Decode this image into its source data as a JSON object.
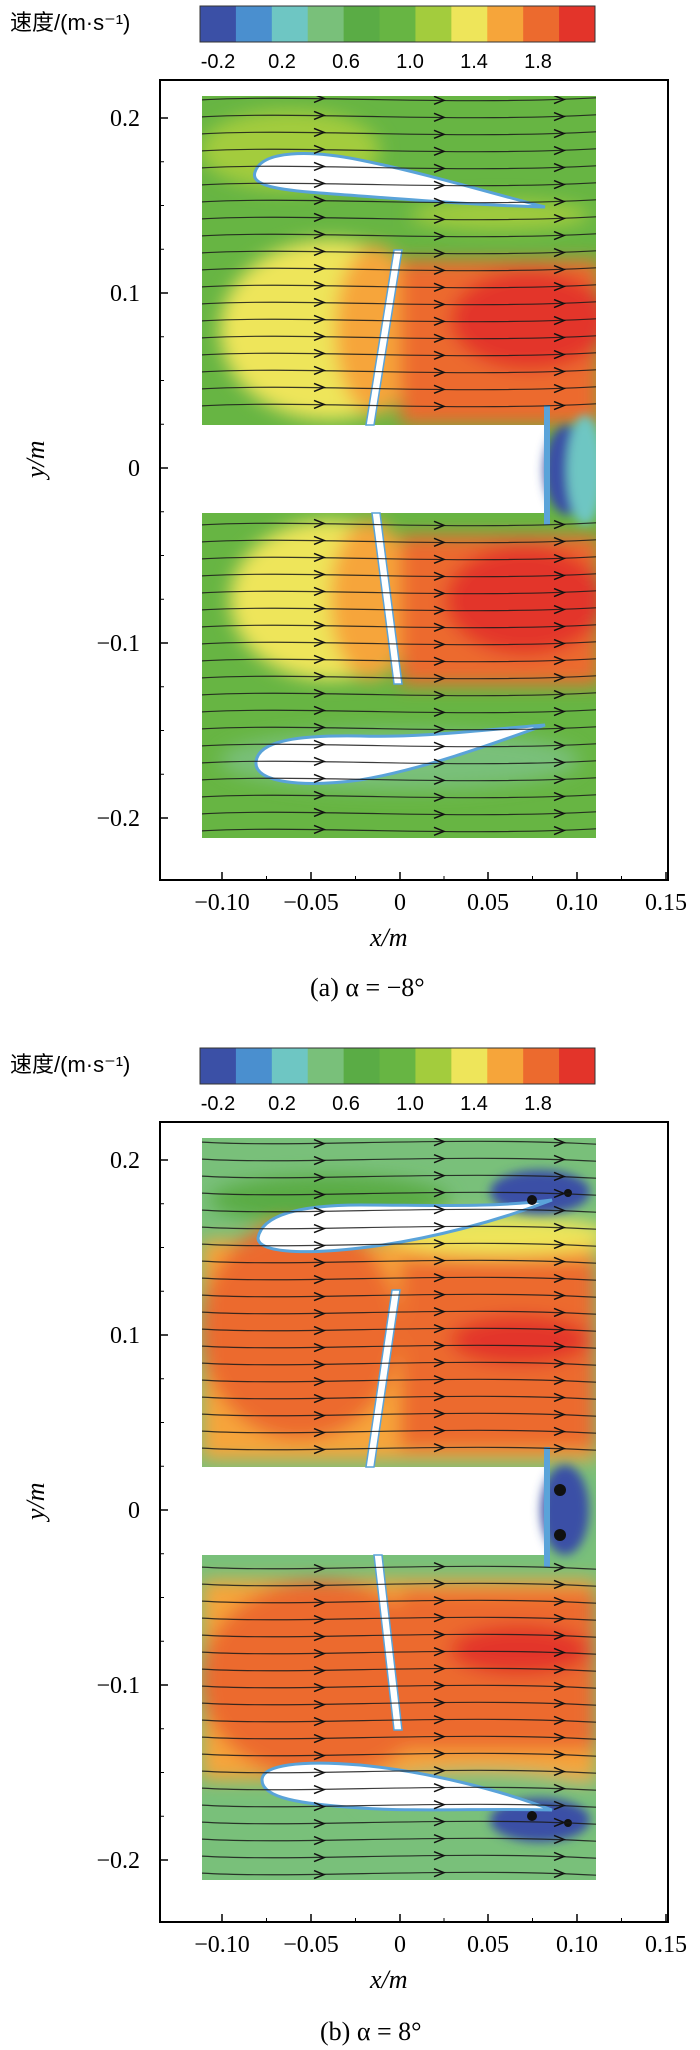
{
  "chart_data": [
    {
      "type": "contour",
      "subplot": "a",
      "caption": "(a)  α = −8°",
      "xlabel": "x/m",
      "ylabel": "y/m",
      "xlim": [
        -0.135,
        0.15
      ],
      "ylim": [
        -0.235,
        0.225
      ],
      "x_ticks": [
        "−0.10",
        "−0.05",
        "0",
        "0.05",
        "0.10",
        "0.15"
      ],
      "y_ticks": [
        "0.2",
        "0.1",
        "0",
        "−0.1",
        "−0.2"
      ],
      "colorbar": {
        "title": "速度/(m·s⁻¹)",
        "tick_labels": [
          "-0.2",
          "0.2",
          "0.6",
          "1.0",
          "1.4",
          "1.8"
        ]
      },
      "flow_angle_deg": -8,
      "vortex_regions": [
        {
          "x": 0.092,
          "y": 0.0,
          "label": "wake vortex"
        }
      ],
      "high_speed_regions": [
        {
          "x": 0.07,
          "y": 0.08,
          "level": 1.9
        },
        {
          "x": 0.07,
          "y": -0.07,
          "level": 1.9
        }
      ]
    },
    {
      "type": "contour",
      "subplot": "b",
      "caption": "(b)  α = 8°",
      "xlabel": "x/m",
      "ylabel": "y/m",
      "xlim": [
        -0.135,
        0.15
      ],
      "ylim": [
        -0.235,
        0.225
      ],
      "x_ticks": [
        "−0.10",
        "−0.05",
        "0",
        "0.05",
        "0.10",
        "0.15"
      ],
      "y_ticks": [
        "0.2",
        "0.1",
        "0",
        "−0.1",
        "−0.2"
      ],
      "colorbar": {
        "title": "速度/(m·s⁻¹)",
        "tick_labels": [
          "-0.2",
          "0.2",
          "0.6",
          "1.0",
          "1.4",
          "1.8"
        ]
      },
      "flow_angle_deg": 8,
      "vortex_regions": [
        {
          "x": 0.09,
          "y": 0.015
        },
        {
          "x": 0.09,
          "y": -0.015
        },
        {
          "x": 0.075,
          "y": 0.155
        },
        {
          "x": 0.075,
          "y": -0.16
        }
      ],
      "high_speed_regions": [
        {
          "x": -0.06,
          "y": 0.07,
          "level": 1.9
        },
        {
          "x": 0.07,
          "y": 0.08,
          "level": 1.9
        },
        {
          "x": -0.05,
          "y": -0.08,
          "level": 1.9
        },
        {
          "x": 0.07,
          "y": -0.07,
          "level": 1.9
        }
      ]
    }
  ],
  "colors": {
    "colormap": [
      "#3b50a6",
      "#4a8fcf",
      "#6ec6c3",
      "#79c07a",
      "#5aac45",
      "#67b543",
      "#a3cc3d",
      "#eee55a",
      "#f6a53a",
      "#ec6a2e",
      "#e3342a"
    ],
    "airfoil_fill": "#ffffff",
    "streamline": "#111111"
  }
}
